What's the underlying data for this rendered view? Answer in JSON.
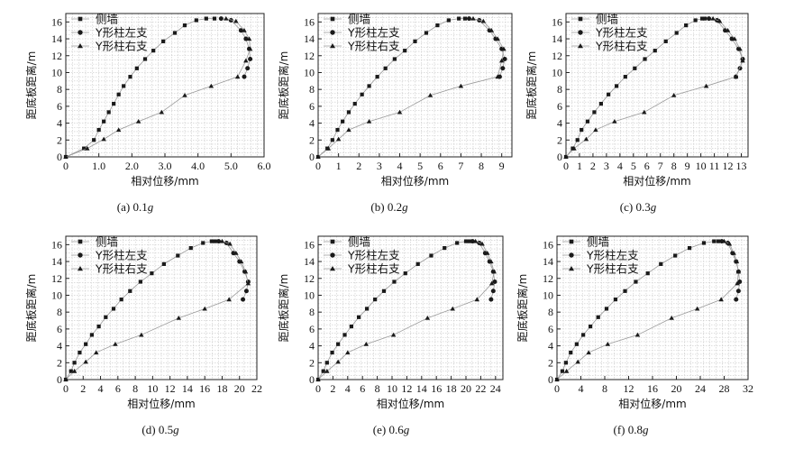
{
  "figure": {
    "legend": [
      "侧墙",
      "Y形柱左支",
      "Y形柱右支"
    ],
    "legend_markers": [
      "square",
      "circle",
      "triangle"
    ],
    "xlabel": "相对位移/mm",
    "ylabel": "距底板距离/m",
    "colors": {
      "line": "#9a9a9a",
      "marker": "#1a1a1a",
      "grid": "#c8c8c8",
      "axis": "#222222"
    }
  },
  "chart_data": [
    {
      "type": "line",
      "caption_prefix": "(a) 0.1",
      "caption_var": "g",
      "xlabel": "相对位移/mm",
      "ylabel": "距底板距离/m",
      "xlim": [
        0,
        6
      ],
      "ylim": [
        0,
        17
      ],
      "grid": true,
      "legend_position": "top-left",
      "xticks": [
        "0",
        "1.0",
        "2.0",
        "3.0",
        "4.0",
        "5.0",
        "6.0"
      ],
      "yticks": [
        "0",
        "2",
        "4",
        "6",
        "8",
        "10",
        "12",
        "14",
        "16"
      ],
      "series": [
        {
          "name": "侧墙",
          "marker": "square",
          "x": [
            0.0,
            0.55,
            0.85,
            1.0,
            1.15,
            1.3,
            1.45,
            1.6,
            1.75,
            1.95,
            2.15,
            2.4,
            2.65,
            2.95,
            3.3,
            3.6,
            3.95,
            4.25,
            4.5
          ],
          "y": [
            0.0,
            1.0,
            2.0,
            3.2,
            4.2,
            5.3,
            6.3,
            7.4,
            8.4,
            9.5,
            10.5,
            11.6,
            12.6,
            13.7,
            14.7,
            15.6,
            16.2,
            16.4,
            16.4
          ]
        },
        {
          "name": "Y形柱左支",
          "marker": "circle",
          "x": [
            4.7,
            5.0,
            5.3,
            5.45,
            5.55,
            5.58,
            5.5,
            5.4
          ],
          "y": [
            16.4,
            16.2,
            15.0,
            14.0,
            12.8,
            11.6,
            10.5,
            9.5
          ]
        },
        {
          "name": "Y形柱右支",
          "marker": "triangle",
          "x": [
            4.85,
            5.15,
            5.4,
            5.55,
            5.58,
            5.45,
            5.2,
            4.4,
            3.6,
            2.9,
            2.2,
            1.6,
            1.15,
            0.65,
            0.0
          ],
          "y": [
            16.4,
            16.1,
            15.0,
            14.0,
            12.8,
            11.4,
            9.5,
            8.4,
            7.3,
            5.3,
            4.2,
            3.2,
            2.1,
            1.0,
            0.0
          ]
        }
      ]
    },
    {
      "type": "line",
      "caption_prefix": "(b) 0.2",
      "caption_var": "g",
      "xlabel": "相对位移/mm",
      "ylabel": "距底板距离/m",
      "xlim": [
        0,
        9.5
      ],
      "ylim": [
        0,
        17
      ],
      "grid": true,
      "legend_position": "top-left",
      "xticks": [
        "0",
        "1",
        "2",
        "3",
        "4",
        "5",
        "6",
        "7",
        "8",
        "9"
      ],
      "yticks": [
        "0",
        "2",
        "4",
        "6",
        "8",
        "10",
        "12",
        "14",
        "16"
      ],
      "series": [
        {
          "name": "侧墙",
          "marker": "square",
          "x": [
            0.0,
            0.45,
            0.7,
            0.95,
            1.2,
            1.5,
            1.8,
            2.15,
            2.5,
            2.9,
            3.3,
            3.75,
            4.25,
            4.75,
            5.3,
            5.85,
            6.4,
            6.9,
            7.2
          ],
          "y": [
            0.0,
            1.0,
            2.0,
            3.2,
            4.2,
            5.3,
            6.3,
            7.4,
            8.4,
            9.5,
            10.5,
            11.6,
            12.6,
            13.7,
            14.7,
            15.6,
            16.2,
            16.4,
            16.4
          ]
        },
        {
          "name": "Y形柱左支",
          "marker": "circle",
          "x": [
            7.4,
            7.9,
            8.4,
            8.7,
            9.0,
            9.15,
            9.05,
            8.9
          ],
          "y": [
            16.4,
            16.2,
            15.0,
            14.0,
            12.8,
            11.6,
            10.5,
            9.5
          ]
        },
        {
          "name": "Y形柱右支",
          "marker": "triangle",
          "x": [
            7.6,
            8.1,
            8.5,
            8.8,
            9.1,
            9.0,
            8.8,
            7.0,
            5.5,
            4.0,
            2.5,
            1.5,
            1.0,
            0.5,
            0.0
          ],
          "y": [
            16.4,
            16.1,
            15.0,
            14.0,
            12.8,
            11.4,
            9.5,
            8.4,
            7.3,
            5.3,
            4.2,
            3.2,
            2.1,
            1.0,
            0.0
          ]
        }
      ]
    },
    {
      "type": "line",
      "caption_prefix": "(c) 0.3",
      "caption_var": "g",
      "xlabel": "相对位移/mm",
      "ylabel": "距底板距离/m",
      "xlim": [
        0,
        13.5
      ],
      "ylim": [
        0,
        17
      ],
      "grid": true,
      "legend_position": "top-left",
      "xticks": [
        "0",
        "1",
        "2",
        "3",
        "4",
        "5",
        "6",
        "7",
        "8",
        "9",
        "10",
        "11",
        "12",
        "13"
      ],
      "yticks": [
        "0",
        "2",
        "4",
        "6",
        "8",
        "10",
        "12",
        "14",
        "16"
      ],
      "series": [
        {
          "name": "侧墙",
          "marker": "square",
          "x": [
            0.0,
            0.5,
            0.85,
            1.15,
            1.6,
            2.1,
            2.6,
            3.15,
            3.75,
            4.4,
            5.1,
            5.85,
            6.6,
            7.4,
            8.2,
            8.9,
            9.6,
            10.1,
            10.3
          ],
          "y": [
            0.0,
            1.0,
            2.0,
            3.2,
            4.2,
            5.3,
            6.3,
            7.4,
            8.4,
            9.5,
            10.5,
            11.6,
            12.6,
            13.7,
            14.7,
            15.6,
            16.2,
            16.4,
            16.4
          ]
        },
        {
          "name": "Y形柱左支",
          "marker": "circle",
          "x": [
            10.6,
            11.2,
            11.8,
            12.3,
            12.8,
            13.1,
            12.9,
            12.6
          ],
          "y": [
            16.4,
            16.2,
            15.0,
            14.0,
            12.8,
            11.6,
            10.5,
            9.5
          ]
        },
        {
          "name": "Y形柱右支",
          "marker": "triangle",
          "x": [
            10.9,
            11.4,
            12.0,
            12.5,
            12.9,
            13.1,
            12.6,
            10.4,
            8.0,
            5.8,
            3.6,
            2.2,
            1.5,
            0.6,
            0.0
          ],
          "y": [
            16.4,
            16.1,
            15.0,
            14.0,
            12.8,
            11.4,
            9.5,
            8.4,
            7.3,
            5.3,
            4.2,
            3.2,
            2.1,
            1.0,
            0.0
          ]
        }
      ]
    },
    {
      "type": "line",
      "caption_prefix": "(d) 0.5",
      "caption_var": "g",
      "xlabel": "相对位移/mm",
      "ylabel": "距底板距离/m",
      "xlim": [
        0,
        22
      ],
      "ylim": [
        0,
        17
      ],
      "grid": true,
      "legend_position": "top-left",
      "xticks": [
        "0",
        "2",
        "4",
        "6",
        "8",
        "10",
        "12",
        "14",
        "16",
        "18",
        "20",
        "22"
      ],
      "yticks": [
        "0",
        "2",
        "4",
        "6",
        "8",
        "10",
        "12",
        "14",
        "16"
      ],
      "series": [
        {
          "name": "侧墙",
          "marker": "square",
          "x": [
            0.0,
            0.6,
            1.0,
            1.6,
            2.3,
            3.0,
            3.8,
            4.6,
            5.5,
            6.4,
            7.4,
            8.6,
            9.9,
            11.3,
            12.9,
            14.4,
            15.8,
            16.8,
            17.2
          ],
          "y": [
            0.0,
            1.0,
            2.0,
            3.2,
            4.2,
            5.3,
            6.3,
            7.4,
            8.4,
            9.5,
            10.5,
            11.6,
            12.6,
            13.7,
            14.7,
            15.6,
            16.2,
            16.4,
            16.4
          ]
        },
        {
          "name": "Y形柱左支",
          "marker": "circle",
          "x": [
            17.6,
            18.5,
            19.3,
            20.0,
            20.6,
            21.0,
            20.8,
            20.4
          ],
          "y": [
            16.4,
            16.2,
            15.0,
            14.0,
            12.8,
            11.6,
            10.5,
            9.5
          ]
        },
        {
          "name": "Y形柱右支",
          "marker": "triangle",
          "x": [
            18.0,
            18.9,
            19.6,
            20.2,
            20.7,
            21.0,
            18.8,
            16.0,
            13.0,
            8.7,
            5.7,
            3.5,
            2.3,
            1.0,
            0.0
          ],
          "y": [
            16.4,
            16.1,
            15.0,
            14.0,
            12.8,
            11.4,
            9.5,
            8.4,
            7.3,
            5.3,
            4.2,
            3.2,
            2.1,
            1.0,
            0.0
          ]
        }
      ]
    },
    {
      "type": "line",
      "caption_prefix": "(e) 0.6",
      "caption_var": "g",
      "xlabel": "相对位移/mm",
      "ylabel": "距底板距离/m",
      "xlim": [
        0,
        25
      ],
      "ylim": [
        0,
        17
      ],
      "grid": true,
      "legend_position": "top-left",
      "xticks": [
        "0",
        "2",
        "4",
        "6",
        "8",
        "10",
        "12",
        "14",
        "16",
        "18",
        "20",
        "22",
        "24"
      ],
      "yticks": [
        "0",
        "2",
        "4",
        "6",
        "8",
        "10",
        "12",
        "14",
        "16"
      ],
      "series": [
        {
          "name": "侧墙",
          "marker": "square",
          "x": [
            0.0,
            0.7,
            1.2,
            1.9,
            2.7,
            3.6,
            4.5,
            5.5,
            6.6,
            7.7,
            8.9,
            10.3,
            11.8,
            13.5,
            15.3,
            17.1,
            18.8,
            20.0,
            20.5
          ],
          "y": [
            0.0,
            1.0,
            2.0,
            3.2,
            4.2,
            5.3,
            6.3,
            7.4,
            8.4,
            9.5,
            10.5,
            11.6,
            12.6,
            13.7,
            14.7,
            15.6,
            16.2,
            16.4,
            16.4
          ]
        },
        {
          "name": "Y形柱左支",
          "marker": "circle",
          "x": [
            20.9,
            21.8,
            22.6,
            23.2,
            23.7,
            23.9,
            23.7,
            23.4
          ],
          "y": [
            16.4,
            16.2,
            15.0,
            14.0,
            12.8,
            11.6,
            10.5,
            9.5
          ]
        },
        {
          "name": "Y形柱右支",
          "marker": "triangle",
          "x": [
            21.3,
            22.2,
            22.9,
            23.4,
            23.8,
            23.5,
            21.5,
            18.2,
            14.8,
            10.2,
            6.5,
            4.0,
            2.7,
            1.2,
            0.0
          ],
          "y": [
            16.4,
            16.1,
            15.0,
            14.0,
            12.8,
            11.4,
            9.5,
            8.4,
            7.3,
            5.3,
            4.2,
            3.2,
            2.1,
            1.0,
            0.0
          ]
        }
      ]
    },
    {
      "type": "line",
      "caption_prefix": "(f) 0.8",
      "caption_var": "g",
      "xlabel": "相对位移/mm",
      "ylabel": "距底板距离/m",
      "xlim": [
        0,
        32
      ],
      "ylim": [
        0,
        17
      ],
      "grid": true,
      "legend_position": "top-left",
      "xticks": [
        "0",
        "4",
        "8",
        "12",
        "16",
        "20",
        "24",
        "28",
        "32"
      ],
      "yticks": [
        "0",
        "2",
        "4",
        "6",
        "8",
        "10",
        "12",
        "14",
        "16"
      ],
      "series": [
        {
          "name": "侧墙",
          "marker": "square",
          "x": [
            0.0,
            0.9,
            1.5,
            2.3,
            3.3,
            4.4,
            5.6,
            6.9,
            8.3,
            9.8,
            11.4,
            13.2,
            15.2,
            17.4,
            19.8,
            22.2,
            24.6,
            26.3,
            27.0
          ],
          "y": [
            0.0,
            1.0,
            2.0,
            3.2,
            4.2,
            5.3,
            6.3,
            7.4,
            8.4,
            9.5,
            10.5,
            11.6,
            12.6,
            13.7,
            14.7,
            15.6,
            16.2,
            16.4,
            16.4
          ]
        },
        {
          "name": "Y形柱左支",
          "marker": "circle",
          "x": [
            27.6,
            28.6,
            29.4,
            30.0,
            30.4,
            30.6,
            30.4,
            30.0
          ],
          "y": [
            16.4,
            16.2,
            15.0,
            14.0,
            12.8,
            11.6,
            10.5,
            9.5
          ]
        },
        {
          "name": "Y形柱右支",
          "marker": "triangle",
          "x": [
            28.0,
            28.9,
            29.6,
            30.1,
            30.4,
            30.2,
            27.5,
            23.5,
            19.2,
            13.5,
            8.5,
            5.3,
            3.5,
            1.6,
            0.0
          ],
          "y": [
            16.4,
            16.1,
            15.0,
            14.0,
            12.8,
            11.4,
            9.5,
            8.4,
            7.3,
            5.3,
            4.2,
            3.2,
            2.1,
            1.0,
            0.0
          ]
        }
      ]
    }
  ]
}
